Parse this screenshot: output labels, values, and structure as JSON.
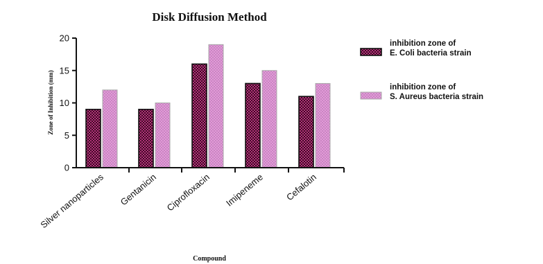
{
  "chart_data": {
    "type": "bar",
    "title": "Disk Diffusion Method",
    "xlabel": "Compound",
    "ylabel": "Zone of Inhibition (mm)",
    "categories": [
      "Silver nanoparticles",
      "Gentanicin",
      "Ciprofloxacin",
      "Imipeneme",
      "Cefalotin"
    ],
    "series": [
      {
        "name": "inhibition zone of\nE. Coli bacteria strain",
        "values": [
          9,
          9,
          16,
          13,
          11
        ],
        "color": "#3d0a24",
        "pattern_color": "#b3337a"
      },
      {
        "name": "inhibition zone of\nS. Aureus bacteria strain",
        "values": [
          12,
          10,
          19,
          15,
          13
        ],
        "color": "#e29ad8",
        "pattern_color": "#c986c2"
      }
    ],
    "ylim": [
      0,
      20
    ],
    "yticks": [
      0,
      5,
      10,
      15,
      20
    ],
    "grid": false,
    "legend": "right"
  }
}
